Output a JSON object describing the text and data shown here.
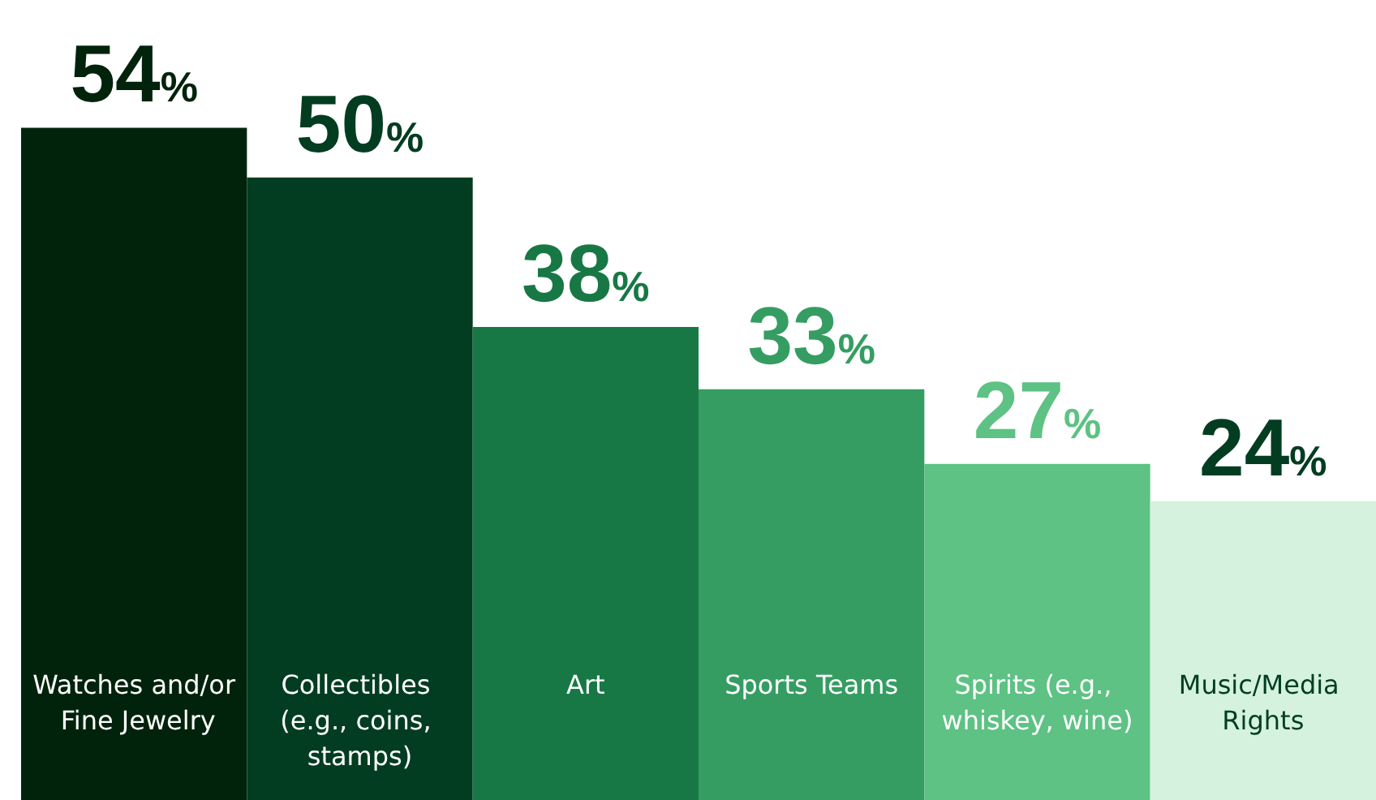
{
  "chart_data": {
    "type": "bar",
    "categories": [
      "Watches and/or Fine Jewelry",
      "Collectibles (e.g., coins, stamps)",
      "Art",
      "Sports Teams",
      "Spirits (e.g., whiskey, wine)",
      "Music/Media Rights"
    ],
    "values": [
      54,
      50,
      38,
      33,
      27,
      24
    ],
    "colors": [
      "#02230b",
      "#033d21",
      "#187845",
      "#359d62",
      "#5dc283",
      "#d4f2de"
    ],
    "value_labels": [
      "54%",
      "50%",
      "38%",
      "33%",
      "27%",
      "24%"
    ]
  }
}
